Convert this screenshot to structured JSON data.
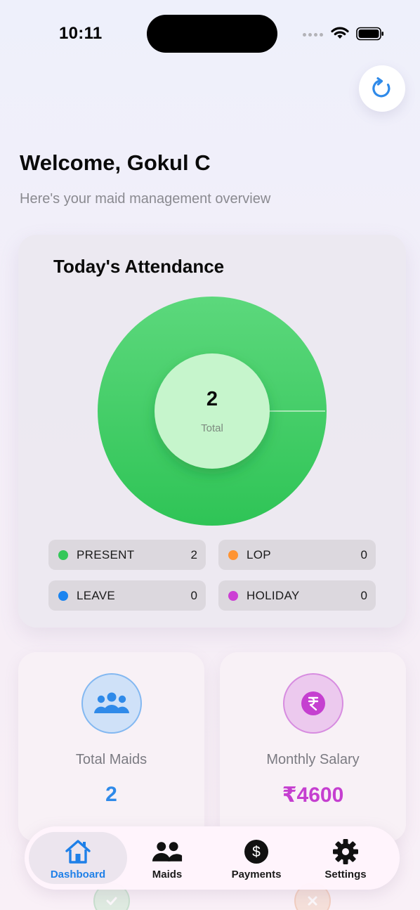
{
  "status_bar": {
    "time": "10:11"
  },
  "header": {
    "title": "Welcome, Gokul C",
    "subtitle": "Here's your maid management overview"
  },
  "attendance": {
    "title": "Today's Attendance",
    "total_value": "2",
    "total_label": "Total",
    "legend": [
      {
        "label": "PRESENT",
        "value": "2",
        "color": "#34c759"
      },
      {
        "label": "LOP",
        "value": "0",
        "color": "#ff9433"
      },
      {
        "label": "LEAVE",
        "value": "0",
        "color": "#1a84f0"
      },
      {
        "label": "HOLIDAY",
        "value": "0",
        "color": "#cc3fd4"
      }
    ]
  },
  "chart_data": {
    "type": "pie",
    "title": "Today's Attendance",
    "categories": [
      "PRESENT",
      "LOP",
      "LEAVE",
      "HOLIDAY"
    ],
    "values": [
      2,
      0,
      0,
      0
    ],
    "center_value": 2,
    "center_label": "Total",
    "colors": [
      "#34c759",
      "#ff9433",
      "#1a84f0",
      "#cc3fd4"
    ]
  },
  "stats": {
    "total_maids": {
      "label": "Total Maids",
      "value": "2",
      "color": "#2f8ae9"
    },
    "monthly_salary": {
      "label": "Monthly Salary",
      "value": "₹4600",
      "color": "#c53fd0"
    }
  },
  "nav": {
    "items": [
      {
        "label": "Dashboard",
        "icon": "home-icon",
        "active": true
      },
      {
        "label": "Maids",
        "icon": "people-icon"
      },
      {
        "label": "Payments",
        "icon": "dollar-icon"
      },
      {
        "label": "Settings",
        "icon": "gear-icon"
      }
    ]
  },
  "icons": {
    "refresh": "refresh-icon",
    "rupee": "rupee-icon",
    "group": "group-icon",
    "check": "check-icon",
    "close": "close-icon"
  }
}
